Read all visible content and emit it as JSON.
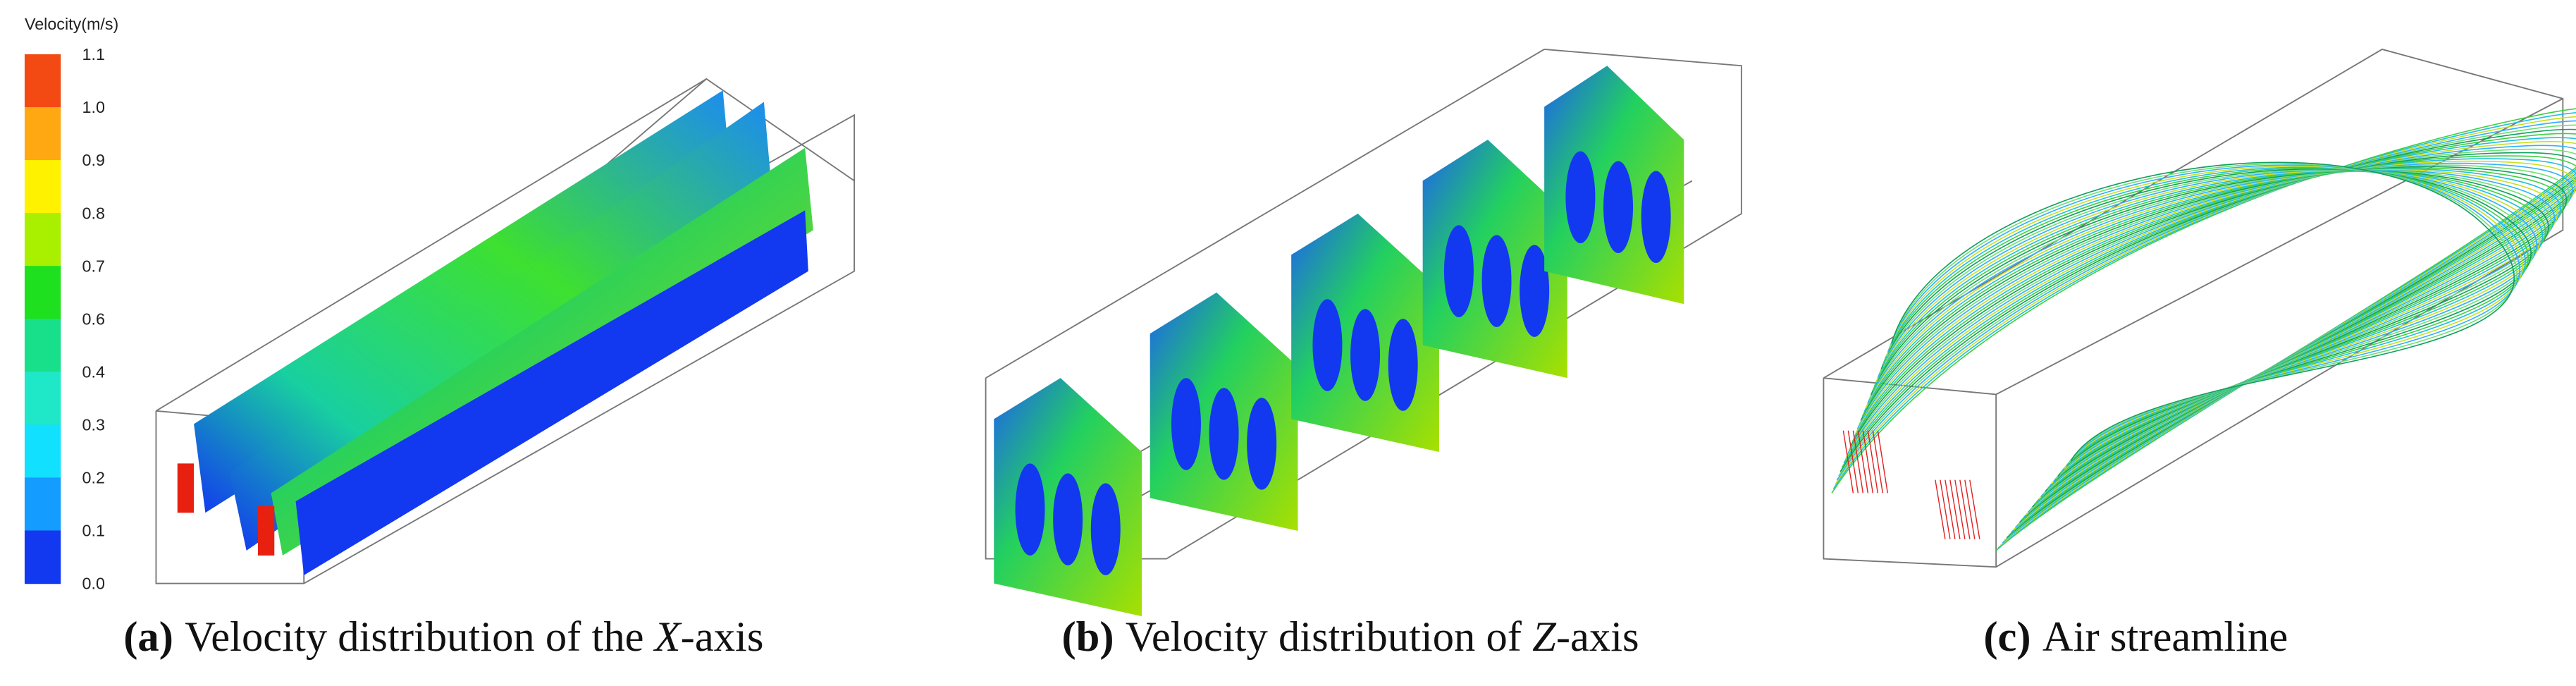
{
  "colorbar": {
    "title": "Velocity(m/s)",
    "labels": [
      "1.1",
      "1.0",
      "0.9",
      "0.8",
      "0.7",
      "0.6",
      "0.4",
      "0.3",
      "0.2",
      "0.1",
      "0.0"
    ],
    "colors": [
      "#f24a12",
      "#ffa812",
      "#fff200",
      "#a8f000",
      "#1ee01e",
      "#18e08a",
      "#1ee8c8",
      "#12e0ff",
      "#149cff",
      "#1238f0"
    ]
  },
  "panels": [
    {
      "label": "(a)",
      "caption": [
        "Velocity distribution of the ",
        "X",
        "-axis"
      ]
    },
    {
      "label": "(b)",
      "caption": [
        "Velocity distribution of ",
        "Z",
        "-axis"
      ]
    },
    {
      "label": "(c)",
      "caption": [
        "Air streamline"
      ]
    }
  ]
}
